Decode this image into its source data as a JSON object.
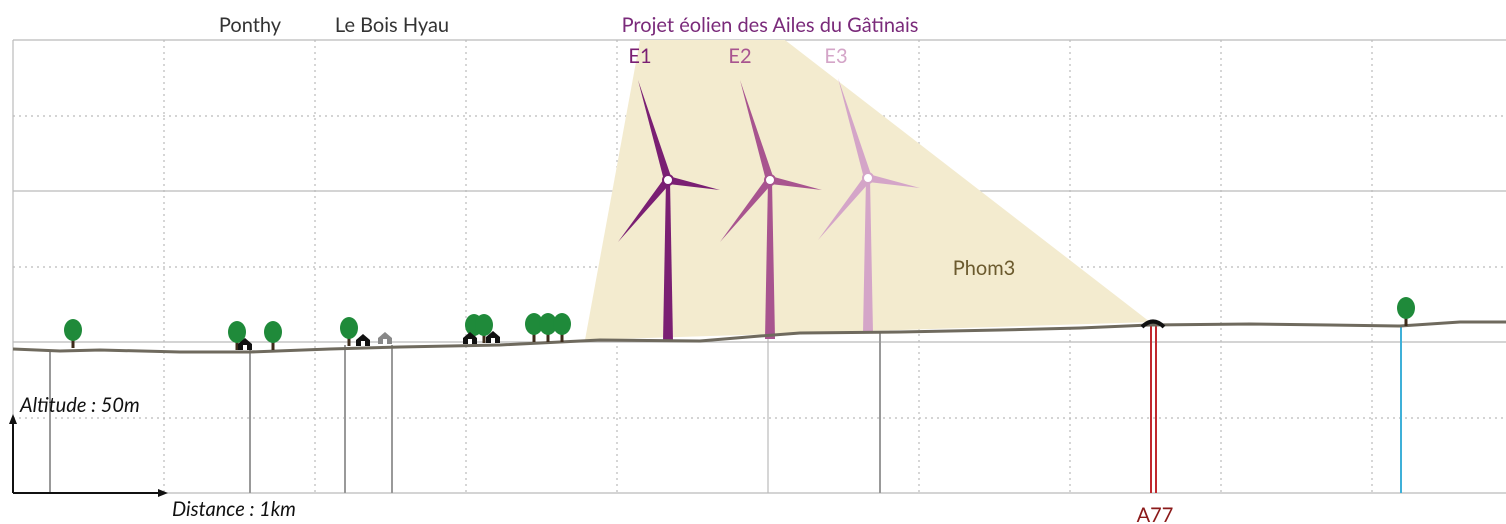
{
  "places": [
    "Ponthy",
    "Le Bois Hyau"
  ],
  "project": {
    "title": "Projet éolien des Ailes du Gâtinais",
    "turbines": [
      "E1",
      "E2",
      "E3"
    ]
  },
  "viewpoint": "Phom3",
  "road": "A77",
  "scale": {
    "altitude": "Altitude : 50m",
    "distance": "Distance : 1km"
  }
}
